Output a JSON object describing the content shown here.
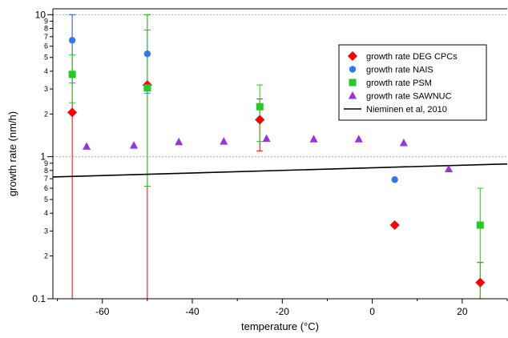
{
  "chart_data": {
    "type": "scatter",
    "xlabel": "temperature (°C)",
    "ylabel": "growth rate (nm/h)",
    "xlim": [
      -71,
      30
    ],
    "ylim": [
      0.1,
      11
    ],
    "y_scale": "log",
    "x_ticks": [
      -60,
      -40,
      -20,
      0,
      20
    ],
    "x_tick_labels": [
      "-60",
      "-40",
      "-20",
      "0",
      "20"
    ],
    "y_major_ticks": [
      0.1,
      1,
      10
    ],
    "y_major_labels": [
      "0.1",
      "1",
      "10"
    ],
    "y_minor_ticks": [
      0.2,
      0.3,
      0.4,
      0.5,
      0.6,
      0.7,
      0.8,
      0.9,
      2,
      3,
      4,
      5,
      6,
      7,
      8,
      9
    ],
    "y_minor_labels": [
      "2",
      "3",
      "4",
      "5",
      "6",
      "7",
      "8",
      "9",
      "2",
      "3",
      "4",
      "5",
      "6",
      "7",
      "8",
      "9"
    ],
    "reference_lines_y": [
      1,
      10
    ],
    "legend_placement": "top-right",
    "series": [
      {
        "name": "growth rate DEG CPCs",
        "marker": "diamond",
        "color": "#ff0000",
        "points": [
          {
            "x": -66.7,
            "y": 2.05,
            "lo": 0.1,
            "hi": 10
          },
          {
            "x": -50,
            "y": 3.2,
            "lo": 0.1,
            "hi": 10
          },
          {
            "x": -25,
            "y": 1.82,
            "lo": 1.1,
            "hi": 2.55
          },
          {
            "x": 5,
            "y": 0.33
          },
          {
            "x": 24,
            "y": 0.13,
            "lo": 0.1,
            "hi": 0.18
          }
        ]
      },
      {
        "name": "growth rate NAIS",
        "marker": "circle",
        "color": "#3377ee",
        "points": [
          {
            "x": -66.7,
            "y": 6.6,
            "lo": 3.3,
            "hi": 10
          },
          {
            "x": -50,
            "y": 5.3,
            "lo": 2.8,
            "hi": 7.8
          },
          {
            "x": 5,
            "y": 0.69
          }
        ]
      },
      {
        "name": "growth rate PSM",
        "marker": "square",
        "color": "#22cc22",
        "points": [
          {
            "x": -66.7,
            "y": 3.8,
            "lo": 2.4,
            "hi": 5.2
          },
          {
            "x": -50,
            "y": 3.05,
            "lo": 0.62,
            "hi": 10
          },
          {
            "x": -25,
            "y": 2.25,
            "lo": 1.28,
            "hi": 3.2
          },
          {
            "x": 24,
            "y": 0.33,
            "lo": 0.1,
            "hi": 0.6
          }
        ]
      },
      {
        "name": "growth rate SAWNUC",
        "marker": "triangle",
        "color": "#9933dd",
        "points": [
          {
            "x": -63.5,
            "y": 1.18
          },
          {
            "x": -53,
            "y": 1.2
          },
          {
            "x": -43,
            "y": 1.27
          },
          {
            "x": -33,
            "y": 1.28
          },
          {
            "x": -23.5,
            "y": 1.34
          },
          {
            "x": -13,
            "y": 1.33
          },
          {
            "x": -3,
            "y": 1.33
          },
          {
            "x": 7,
            "y": 1.25
          },
          {
            "x": 17,
            "y": 0.82
          }
        ]
      },
      {
        "name": "Nieminen et al, 2010",
        "marker": "line",
        "color": "#000000",
        "points": [
          {
            "x": -71,
            "y": 0.72
          },
          {
            "x": 30,
            "y": 0.89
          }
        ]
      }
    ]
  }
}
